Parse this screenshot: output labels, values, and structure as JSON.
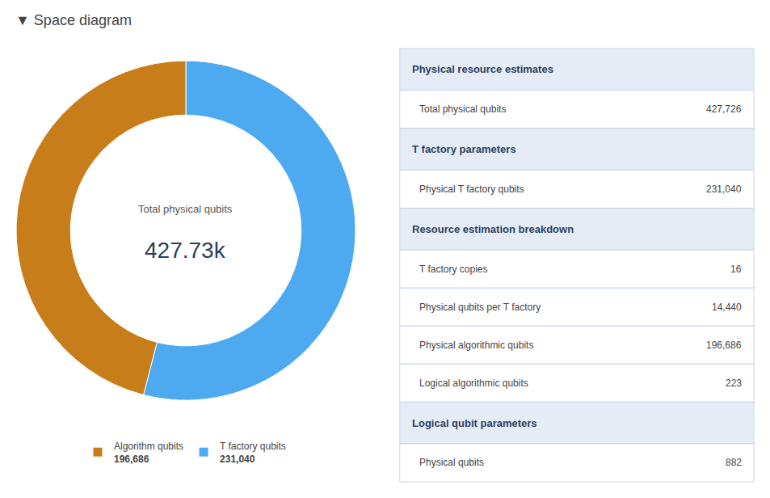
{
  "chart_data": [
    {
      "type": "pie",
      "title": "▼ Space diagram",
      "categories": [
        "T factory qubits",
        "Algorithm qubits"
      ],
      "values": [
        231040,
        196686
      ],
      "value_labels": [
        "231,040",
        "196,686"
      ],
      "colors": [
        "#4daaf0",
        "#c87d1b"
      ],
      "annotations": [
        "Total physical qubits",
        "427.73k"
      ]
    },
    {
      "type": "table",
      "sections": [
        {
          "header": "Physical resource estimates",
          "rows": [
            {
              "label": "Total physical qubits",
              "value": "427,726"
            }
          ]
        },
        {
          "header": "T factory parameters",
          "rows": [
            {
              "label": "Physical T factory qubits",
              "value": "231,040"
            }
          ]
        },
        {
          "header": "Resource estimation breakdown",
          "rows": [
            {
              "label": "T factory copies",
              "value": "16"
            },
            {
              "label": "Physical qubits per T factory",
              "value": "14,440"
            },
            {
              "label": "Physical algorithmic qubits",
              "value": "196,686"
            },
            {
              "label": "Logical algorithmic qubits",
              "value": "223"
            }
          ]
        },
        {
          "header": "Logical qubit parameters",
          "rows": [
            {
              "label": "Physical qubits",
              "value": "882"
            }
          ]
        }
      ]
    }
  ]
}
